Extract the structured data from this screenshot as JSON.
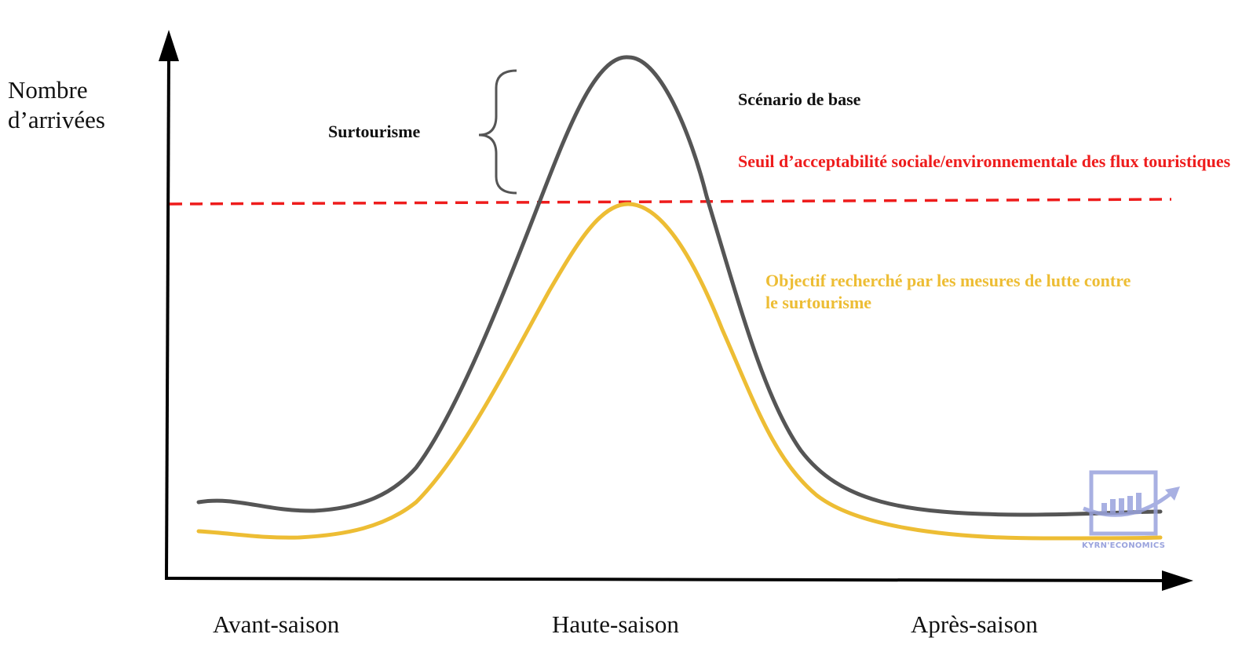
{
  "axes": {
    "y_label": "Nombre d’arrivées",
    "x_categories": [
      "Avant-saison",
      "Haute-saison",
      "Après-saison"
    ]
  },
  "annotations": {
    "baseline": "Scénario de base",
    "overtourism": "Surtourisme",
    "threshold": "Seuil d’acceptabilité sociale/environnementale des flux touristiques",
    "objective": "Objectif recherché par les mesures de lutte contre le surtourisme"
  },
  "logo": {
    "text": "KYRN'ECONOMICS"
  },
  "colors": {
    "baseline_curve": "#555555",
    "objective_curve": "#edbd34",
    "threshold_line": "#ee1c1c",
    "axes": "#000000",
    "logo": "#9aa3dd"
  }
}
